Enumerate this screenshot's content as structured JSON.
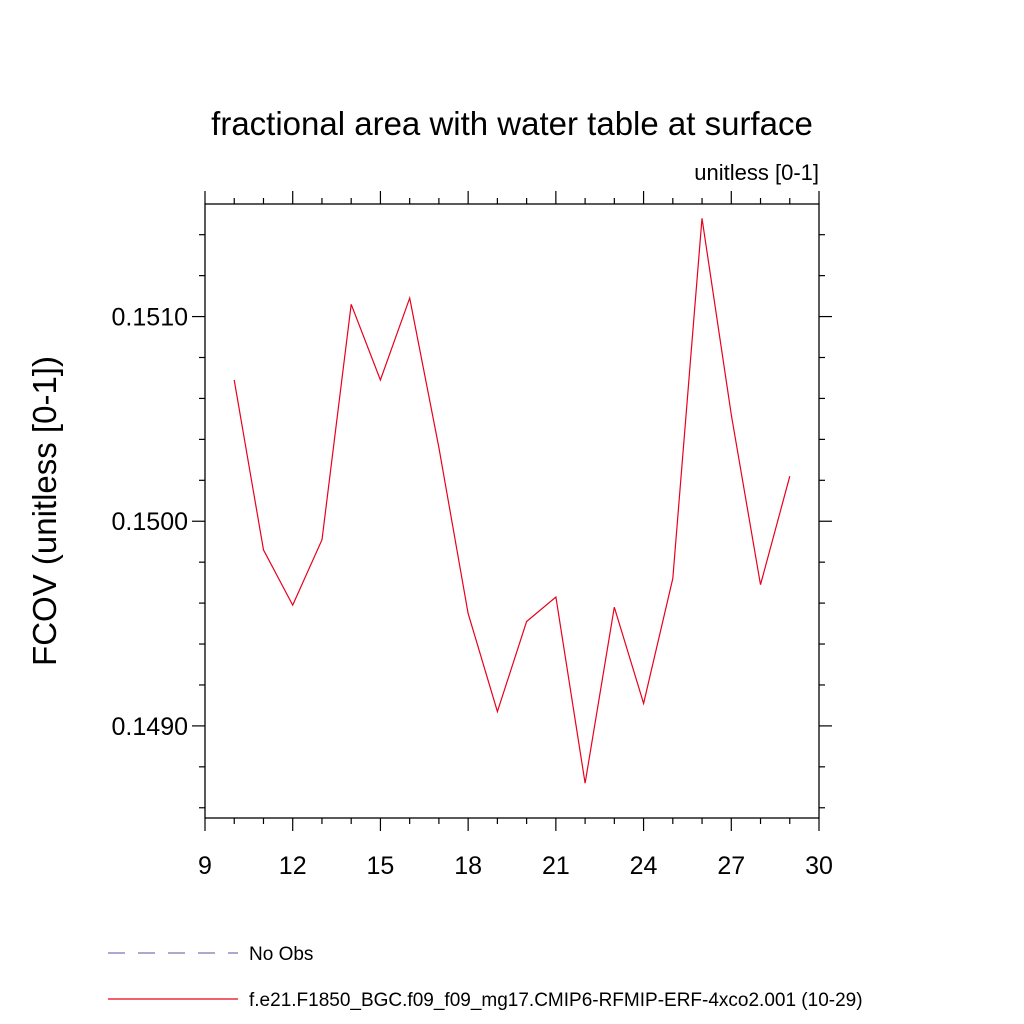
{
  "chart_data": {
    "type": "line",
    "title": "fractional area with water table at surface",
    "units_label": "unitless [0-1]",
    "ylabel": "FCOV  (unitless [0-1])",
    "xlabel": "",
    "xlim": [
      9,
      30
    ],
    "ylim": [
      0.14855,
      0.15155
    ],
    "x_ticks": [
      9,
      12,
      15,
      18,
      21,
      24,
      27,
      30
    ],
    "y_ticks": [
      0.149,
      0.15,
      0.151
    ],
    "y_tick_labels": [
      "0.1490",
      "0.1500",
      "0.1510"
    ],
    "series": [
      {
        "name": "f.e21.F1850_BGC.f09_f09_mg17.CMIP6-RFMIP-ERF-4xco2.001 (10-29)",
        "color": "#e8001c",
        "x": [
          10,
          11,
          12,
          13,
          14,
          15,
          16,
          17,
          18,
          19,
          20,
          21,
          22,
          23,
          24,
          25,
          26,
          27,
          28,
          29
        ],
        "y": [
          0.15069,
          0.14986,
          0.14959,
          0.14991,
          0.15106,
          0.15069,
          0.15109,
          0.15036,
          0.14955,
          0.14907,
          0.14951,
          0.14963,
          0.14872,
          0.14958,
          0.14911,
          0.14972,
          0.15148,
          0.15052,
          0.14969,
          0.15022
        ]
      }
    ],
    "legend": [
      {
        "label": "No Obs",
        "style": "dashed",
        "color": "#7b74b5"
      },
      {
        "label": "f.e21.F1850_BGC.f09_f09_mg17.CMIP6-RFMIP-ERF-4xco2.001 (10-29)",
        "style": "solid",
        "color": "#e8001c"
      }
    ],
    "legend_position": "bottom-left",
    "grid": false
  }
}
